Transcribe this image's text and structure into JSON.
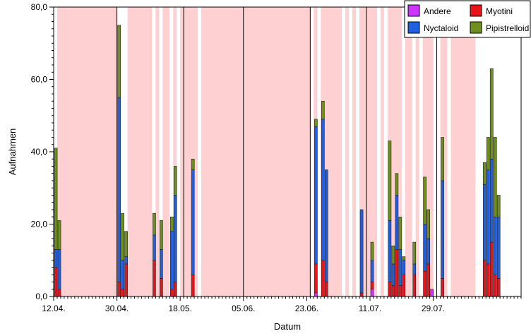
{
  "chart_data": {
    "type": "bar",
    "stacked": true,
    "xlabel": "Datum",
    "ylabel": "Aufnahmen",
    "ylim": [
      0,
      80
    ],
    "yticks": [
      "0,0",
      "20,0",
      "40,0",
      "60,0",
      "80,0"
    ],
    "ytick_values": [
      0,
      20,
      40,
      60,
      80
    ],
    "xlim": [
      0,
      133
    ],
    "xticks": [
      {
        "label": "12.04.",
        "day": 0
      },
      {
        "label": "30.04.",
        "day": 18
      },
      {
        "label": "18.05.",
        "day": 36
      },
      {
        "label": "05.06.",
        "day": 54
      },
      {
        "label": "23.06.",
        "day": 72
      },
      {
        "label": "11.07.",
        "day": 90
      },
      {
        "label": "29.07.",
        "day": 108
      }
    ],
    "legend_position": "top-right",
    "series": [
      {
        "name": "Andere",
        "color": "#cc33ff"
      },
      {
        "name": "Myotini",
        "color": "#e8141c"
      },
      {
        "name": "Nyctaloid",
        "color": "#1f5fe0"
      },
      {
        "name": "Pipistrelloid",
        "color": "#6e8f1e"
      }
    ],
    "legend_order": [
      "Andere",
      "Myotini",
      "Nyctaloid",
      "Pipistrelloid"
    ],
    "shaded_periods": [
      [
        1,
        18
      ],
      [
        21,
        28
      ],
      [
        29,
        30
      ],
      [
        31,
        33
      ],
      [
        34,
        35
      ],
      [
        36,
        41
      ],
      [
        42,
        73
      ],
      [
        74,
        75
      ],
      [
        76,
        82
      ],
      [
        83,
        84
      ],
      [
        85,
        86
      ],
      [
        87,
        92
      ],
      [
        93,
        94
      ],
      [
        95,
        99
      ],
      [
        100,
        102
      ],
      [
        103,
        104
      ],
      [
        105,
        108
      ],
      [
        110,
        112
      ],
      [
        113,
        120
      ]
    ],
    "vertical_lines": [
      18,
      37,
      54,
      73,
      89,
      109
    ],
    "bars": [
      {
        "day": 0,
        "andere": 0,
        "myotini": 8,
        "nyctaloid": 5,
        "pipistrelloid": 28
      },
      {
        "day": 1,
        "andere": 0,
        "myotini": 2,
        "nyctaloid": 11,
        "pipistrelloid": 8
      },
      {
        "day": 18,
        "andere": 0,
        "myotini": 4,
        "nyctaloid": 51,
        "pipistrelloid": 20
      },
      {
        "day": 19,
        "andere": 0,
        "myotini": 2,
        "nyctaloid": 8,
        "pipistrelloid": 13
      },
      {
        "day": 20,
        "andere": 0,
        "myotini": 9,
        "nyctaloid": 2,
        "pipistrelloid": 7
      },
      {
        "day": 28,
        "andere": 0,
        "myotini": 10,
        "nyctaloid": 7,
        "pipistrelloid": 6
      },
      {
        "day": 30,
        "andere": 0,
        "myotini": 5,
        "nyctaloid": 8,
        "pipistrelloid": 8
      },
      {
        "day": 33,
        "andere": 0,
        "myotini": 2,
        "nyctaloid": 16,
        "pipistrelloid": 4
      },
      {
        "day": 34,
        "andere": 0,
        "myotini": 4,
        "nyctaloid": 24,
        "pipistrelloid": 8
      },
      {
        "day": 39,
        "andere": 0,
        "myotini": 6,
        "nyctaloid": 29,
        "pipistrelloid": 3
      },
      {
        "day": 74,
        "andere": 1,
        "myotini": 8,
        "nyctaloid": 38,
        "pipistrelloid": 2
      },
      {
        "day": 76,
        "andere": 0,
        "myotini": 10,
        "nyctaloid": 39,
        "pipistrelloid": 5
      },
      {
        "day": 77,
        "andere": 0,
        "myotini": 4,
        "nyctaloid": 31,
        "pipistrelloid": 0
      },
      {
        "day": 87,
        "andere": 0,
        "myotini": 1,
        "nyctaloid": 23,
        "pipistrelloid": 0
      },
      {
        "day": 90,
        "andere": 2,
        "myotini": 2,
        "nyctaloid": 6,
        "pipistrelloid": 5
      },
      {
        "day": 95,
        "andere": 0,
        "myotini": 4,
        "nyctaloid": 17,
        "pipistrelloid": 22
      },
      {
        "day": 96,
        "andere": 0,
        "myotini": 3,
        "nyctaloid": 6,
        "pipistrelloid": 5
      },
      {
        "day": 97,
        "andere": 0,
        "myotini": 13,
        "nyctaloid": 15,
        "pipistrelloid": 6
      },
      {
        "day": 98,
        "andere": 0,
        "myotini": 3,
        "nyctaloid": 10,
        "pipistrelloid": 9
      },
      {
        "day": 99,
        "andere": 0,
        "myotini": 6,
        "nyctaloid": 4,
        "pipistrelloid": 1
      },
      {
        "day": 102,
        "andere": 0,
        "myotini": 6,
        "nyctaloid": 3,
        "pipistrelloid": 6
      },
      {
        "day": 105,
        "andere": 0,
        "myotini": 7,
        "nyctaloid": 13,
        "pipistrelloid": 13
      },
      {
        "day": 106,
        "andere": 0,
        "myotini": 9,
        "nyctaloid": 7,
        "pipistrelloid": 8
      },
      {
        "day": 107,
        "andere": 2,
        "myotini": 0,
        "nyctaloid": 0,
        "pipistrelloid": 0
      },
      {
        "day": 110,
        "andere": 0,
        "myotini": 5,
        "nyctaloid": 27,
        "pipistrelloid": 12
      },
      {
        "day": 122,
        "andere": 0,
        "myotini": 10,
        "nyctaloid": 21,
        "pipistrelloid": 6
      },
      {
        "day": 123,
        "andere": 0,
        "myotini": 9,
        "nyctaloid": 26,
        "pipistrelloid": 9
      },
      {
        "day": 124,
        "andere": 0,
        "myotini": 15,
        "nyctaloid": 23,
        "pipistrelloid": 25
      },
      {
        "day": 125,
        "andere": 0,
        "myotini": 6,
        "nyctaloid": 16,
        "pipistrelloid": 22
      },
      {
        "day": 126,
        "andere": 0,
        "myotini": 5,
        "nyctaloid": 17,
        "pipistrelloid": 6
      }
    ]
  }
}
